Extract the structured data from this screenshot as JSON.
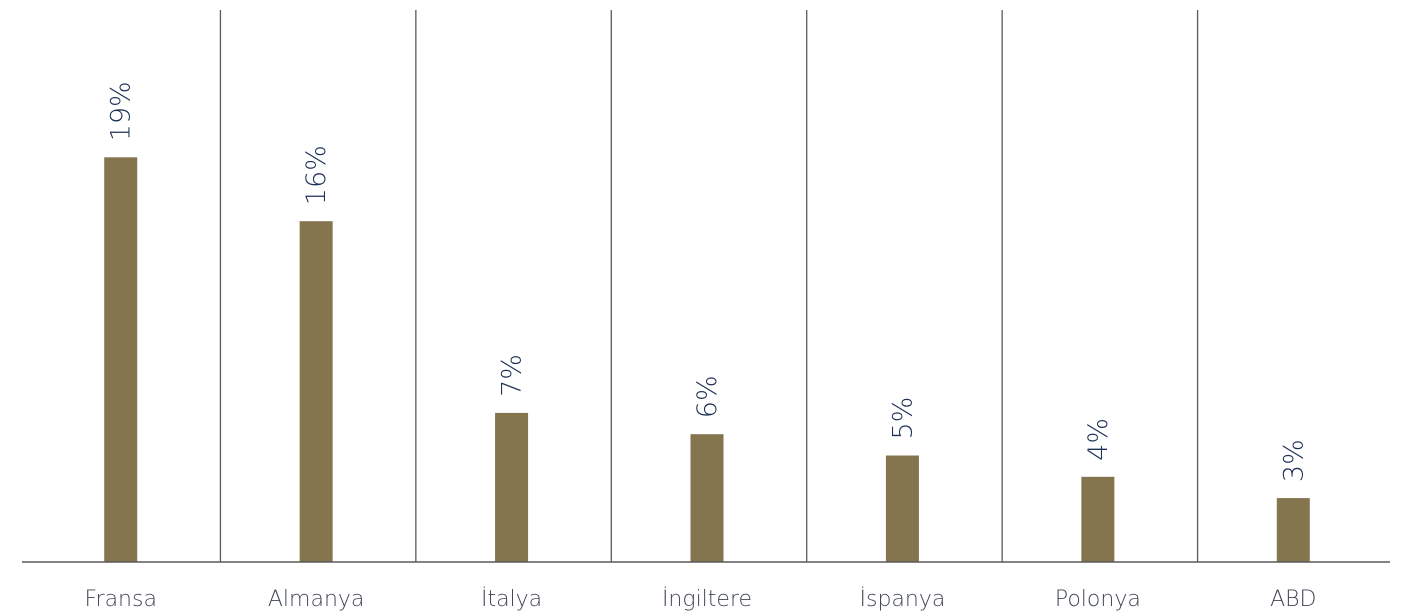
{
  "chart_data": {
    "type": "bar",
    "categories": [
      "Fransa",
      "Almanya",
      "İtalya",
      "İngiltere",
      "İspanya",
      "Polonya",
      "ABD"
    ],
    "values": [
      19,
      16,
      7,
      6,
      5,
      4,
      3
    ],
    "value_labels": [
      "19%",
      "16%",
      "7%",
      "6%",
      "5%",
      "4%",
      "3%"
    ],
    "title": "",
    "xlabel": "",
    "ylabel": "",
    "grid": "vertical separators between categories",
    "legend": "none"
  },
  "colors": {
    "bar": "#85754e",
    "value_label": "#1c2f56",
    "category_label": "#404654",
    "axis": "#5a5a5a",
    "separator": "#5a5a5a"
  }
}
